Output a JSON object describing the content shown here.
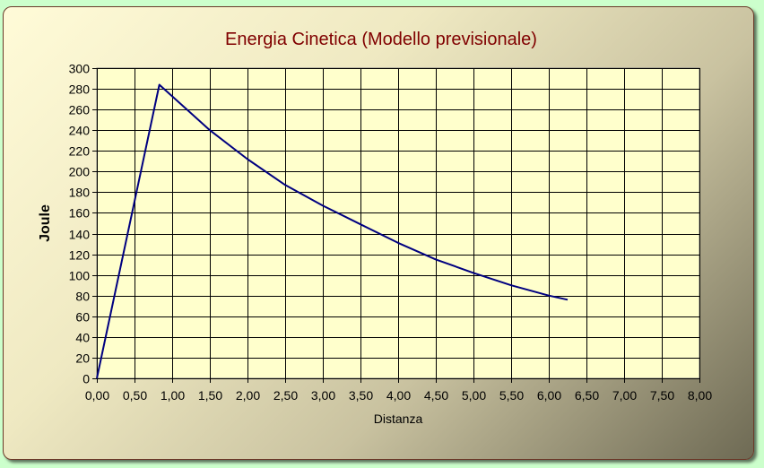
{
  "chart_data": {
    "type": "line",
    "title": "Energia Cinetica (Modello previsionale)",
    "xlabel": "Distanza",
    "ylabel": "Joule",
    "xlim": [
      0,
      8
    ],
    "ylim": [
      0,
      300
    ],
    "x_ticks": [
      "0,00",
      "0,50",
      "1,00",
      "1,50",
      "2,00",
      "2,50",
      "3,00",
      "3,50",
      "4,00",
      "4,50",
      "5,00",
      "5,50",
      "6,00",
      "6,50",
      "7,00",
      "7,50",
      "8,00"
    ],
    "y_ticks": [
      "0",
      "20",
      "40",
      "60",
      "80",
      "100",
      "120",
      "140",
      "160",
      "180",
      "200",
      "220",
      "240",
      "260",
      "280",
      "300"
    ],
    "grid": true,
    "legend": "none",
    "colors": {
      "line": "#000080",
      "plot_bg": "#ffffcc",
      "title": "#800000",
      "grid": "#000000"
    },
    "series": [
      {
        "x": [
          0,
          0.83,
          1.5,
          2.0,
          2.5,
          3.0,
          3.5,
          4.0,
          4.5,
          5.0,
          5.5,
          6.0,
          6.25
        ],
        "y": [
          0,
          284,
          240,
          212,
          187,
          167,
          149,
          131,
          115,
          102,
          90,
          80,
          76
        ]
      }
    ]
  }
}
